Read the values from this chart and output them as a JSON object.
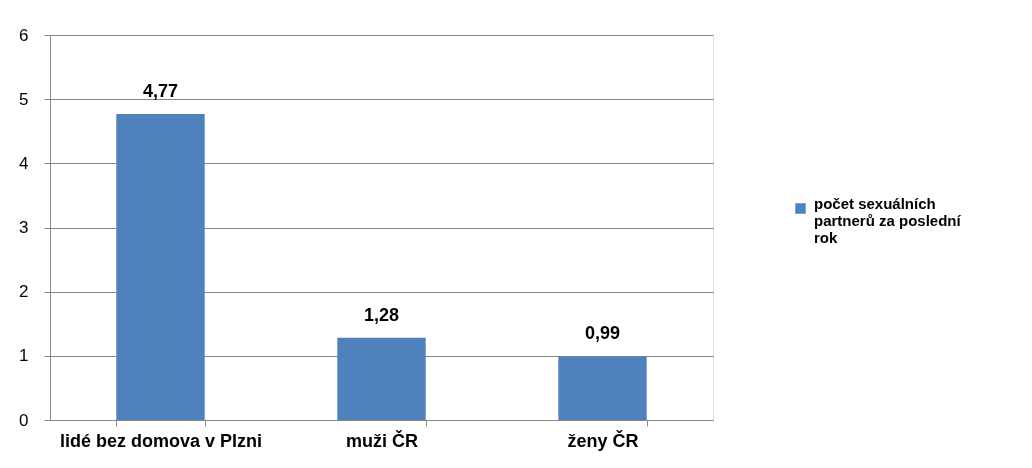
{
  "chart_data": {
    "type": "bar",
    "categories": [
      "lidé bez domova v Plzni",
      "muži ČR",
      "ženy ČR"
    ],
    "series": [
      {
        "name": "počet sexuálních partnerů za poslední rok",
        "color": "#4f81bd",
        "values": [
          4.77,
          1.28,
          0.99
        ],
        "value_labels": [
          "4,77",
          "1,28",
          "0,99"
        ]
      }
    ],
    "ylim": [
      0,
      6
    ],
    "yticks": [
      0,
      1,
      2,
      3,
      4,
      5,
      6
    ],
    "grid": "y",
    "legend": "right"
  }
}
